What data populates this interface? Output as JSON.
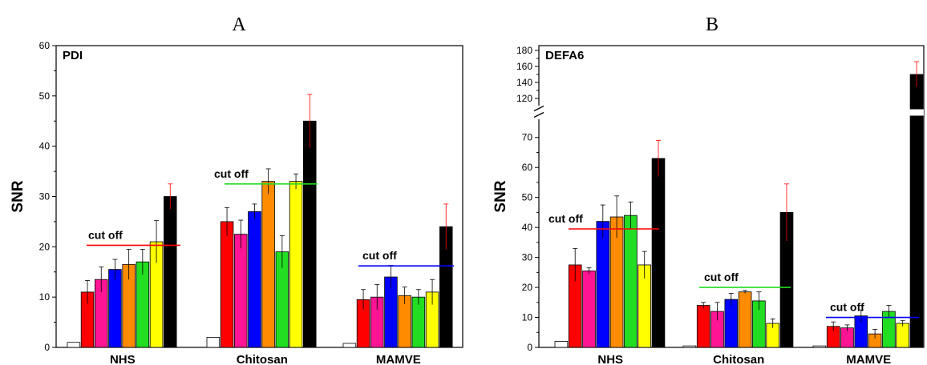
{
  "chart_data": [
    {
      "type": "bar",
      "panel_label": "A",
      "title": "PDI",
      "ylabel": "SNR",
      "ylim": [
        0,
        60
      ],
      "yticks": [
        0,
        10,
        20,
        30,
        40,
        50,
        60
      ],
      "groups": [
        "NHS",
        "Chitosan",
        "MAMVE"
      ],
      "bar_colors": [
        "#ffffff",
        "#ff0000",
        "#ff1493",
        "#0000ff",
        "#ff8c00",
        "#22dd22",
        "#ffff00",
        "#000000"
      ],
      "series": [
        {
          "values": [
            1.0,
            2.0,
            0.8
          ],
          "errors": [
            0,
            0,
            0
          ]
        },
        {
          "values": [
            11.0,
            25.0,
            9.5
          ],
          "errors": [
            2.3,
            2.8,
            2.0
          ]
        },
        {
          "values": [
            13.5,
            22.5,
            10.0
          ],
          "errors": [
            2.5,
            2.8,
            2.5
          ]
        },
        {
          "values": [
            15.5,
            27.0,
            14.0
          ],
          "errors": [
            2.0,
            1.5,
            2.3
          ]
        },
        {
          "values": [
            16.5,
            33.0,
            10.3
          ],
          "errors": [
            3.0,
            2.5,
            1.7
          ]
        },
        {
          "values": [
            17.0,
            19.0,
            10.0
          ],
          "errors": [
            2.5,
            3.2,
            1.5
          ]
        },
        {
          "values": [
            21.0,
            33.0,
            11.0
          ],
          "errors": [
            4.2,
            1.5,
            2.5
          ]
        },
        {
          "values": [
            30.0,
            45.0,
            24.0
          ],
          "errors": [
            2.5,
            5.3,
            4.5
          ]
        }
      ],
      "cutoffs": [
        {
          "label": "cut off",
          "value": 20.3,
          "color": "#ff0000",
          "group": 0
        },
        {
          "label": "cut off",
          "value": 32.5,
          "color": "#22dd22",
          "group": 1
        },
        {
          "label": "cut off",
          "value": 16.2,
          "color": "#0000ff",
          "group": 2
        }
      ]
    },
    {
      "type": "bar",
      "panel_label": "B",
      "title": "DEFA6",
      "ylabel": "SNR",
      "ylim": [
        0,
        180
      ],
      "axis_break": [
        75,
        115
      ],
      "yticks": [
        0,
        10,
        20,
        30,
        40,
        50,
        60,
        70,
        120,
        140,
        160,
        180
      ],
      "groups": [
        "NHS",
        "Chitosan",
        "MAMVE"
      ],
      "bar_colors": [
        "#ffffff",
        "#ff0000",
        "#ff1493",
        "#0000ff",
        "#ff8c00",
        "#22dd22",
        "#ffff00",
        "#000000"
      ],
      "series": [
        {
          "values": [
            2.0,
            0.5,
            0.5
          ],
          "errors": [
            0,
            0,
            0
          ]
        },
        {
          "values": [
            27.5,
            14.0,
            7.0
          ],
          "errors": [
            5.5,
            1.0,
            1.5
          ]
        },
        {
          "values": [
            25.5,
            12.0,
            6.5
          ],
          "errors": [
            1.0,
            3.0,
            1.0
          ]
        },
        {
          "values": [
            42.0,
            16.0,
            10.5
          ],
          "errors": [
            5.5,
            2.0,
            2.0
          ]
        },
        {
          "values": [
            43.5,
            18.5,
            4.5
          ],
          "errors": [
            7.0,
            0.5,
            1.5
          ]
        },
        {
          "values": [
            44.0,
            15.5,
            12.0
          ],
          "errors": [
            4.5,
            3.0,
            2.0
          ]
        },
        {
          "values": [
            27.5,
            8.0,
            8.0
          ],
          "errors": [
            4.5,
            1.5,
            1.0
          ]
        },
        {
          "values": [
            63.0,
            45.0,
            150.0
          ],
          "errors": [
            6.0,
            9.5,
            16.0
          ]
        }
      ],
      "cutoffs": [
        {
          "label": "cut off",
          "value": 39.5,
          "color": "#ff0000",
          "group": 0
        },
        {
          "label": "cut off",
          "value": 20.0,
          "color": "#22dd22",
          "group": 1
        },
        {
          "label": "cut off",
          "value": 10.0,
          "color": "#0000ff",
          "group": 2
        }
      ]
    }
  ]
}
